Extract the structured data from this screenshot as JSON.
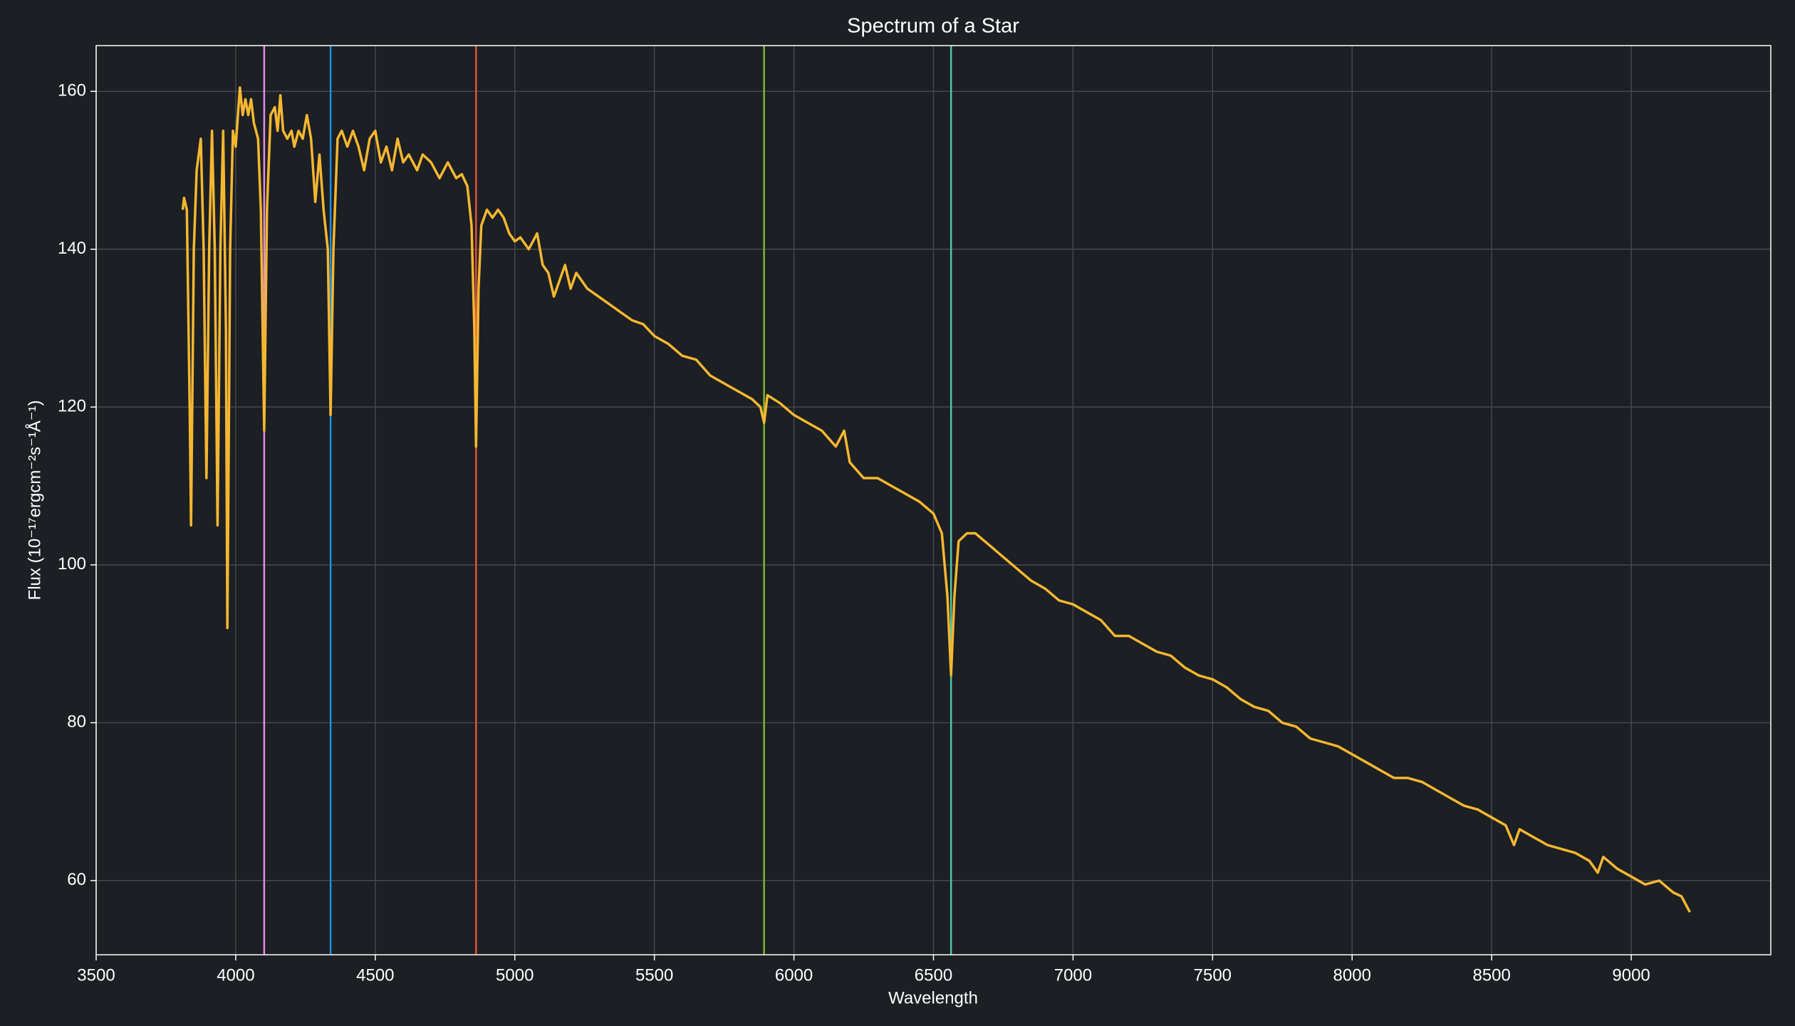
{
  "chart_data": {
    "type": "line",
    "title": "Spectrum of a Star",
    "x_label": "Wavelength",
    "y_label": "Flux (10⁻¹⁷ergcm⁻²s⁻¹Å⁻¹)",
    "background": "#1c1f23",
    "grid": true,
    "grid_color": "#45494e",
    "xlim": [
      3500,
      9500
    ],
    "ylim": [
      50.6,
      165.8
    ],
    "xticks": [
      3500,
      4000,
      4500,
      5000,
      5500,
      6000,
      6500,
      7000,
      7500,
      8000,
      8500,
      9000
    ],
    "yticks": [
      60,
      80,
      100,
      120,
      140,
      160
    ],
    "vlines": [
      {
        "x": 4102,
        "color": "#e58de8"
      },
      {
        "x": 4340,
        "color": "#1f8fe0"
      },
      {
        "x": 4861,
        "color": "#e0523a"
      },
      {
        "x": 5893,
        "color": "#7ab82a"
      },
      {
        "x": 6563,
        "color": "#4ec9a6"
      }
    ],
    "x": [
      3810,
      3815,
      3825,
      3835,
      3840,
      3850,
      3860,
      3875,
      3885,
      3895,
      3905,
      3915,
      3925,
      3935,
      3945,
      3955,
      3965,
      3970,
      3980,
      3990,
      4000,
      4010,
      4015,
      4025,
      4035,
      4045,
      4055,
      4065,
      4080,
      4090,
      4102,
      4112,
      4125,
      4140,
      4150,
      4160,
      4170,
      4185,
      4200,
      4210,
      4225,
      4240,
      4255,
      4270,
      4285,
      4300,
      4315,
      4330,
      4340,
      4350,
      4365,
      4380,
      4400,
      4420,
      4440,
      4460,
      4480,
      4500,
      4520,
      4540,
      4560,
      4580,
      4600,
      4620,
      4650,
      4670,
      4700,
      4730,
      4760,
      4790,
      4810,
      4830,
      4845,
      4855,
      4861,
      4870,
      4880,
      4900,
      4920,
      4940,
      4960,
      4980,
      5000,
      5020,
      5050,
      5080,
      5100,
      5120,
      5140,
      5160,
      5180,
      5200,
      5220,
      5240,
      5260,
      5300,
      5340,
      5380,
      5420,
      5460,
      5500,
      5550,
      5600,
      5650,
      5700,
      5750,
      5800,
      5850,
      5880,
      5893,
      5905,
      5950,
      6000,
      6050,
      6100,
      6150,
      6180,
      6200,
      6250,
      6300,
      6350,
      6400,
      6450,
      6500,
      6530,
      6550,
      6563,
      6575,
      6590,
      6620,
      6650,
      6700,
      6750,
      6800,
      6850,
      6900,
      6950,
      7000,
      7050,
      7100,
      7150,
      7200,
      7250,
      7300,
      7350,
      7400,
      7450,
      7500,
      7550,
      7600,
      7650,
      7700,
      7750,
      7800,
      7850,
      7900,
      7950,
      8000,
      8050,
      8100,
      8150,
      8200,
      8250,
      8300,
      8350,
      8400,
      8450,
      8500,
      8550,
      8580,
      8600,
      8650,
      8700,
      8750,
      8800,
      8850,
      8880,
      8900,
      8950,
      9000,
      9050,
      9100,
      9150,
      9180,
      9210
    ],
    "series": [
      {
        "color": "#f5b731",
        "values": [
          145,
          146.5,
          145,
          120,
          105,
          140,
          150,
          154,
          140,
          111,
          140,
          155,
          140,
          105,
          140,
          155,
          130,
          92,
          140,
          155,
          153,
          158,
          160.5,
          157,
          159,
          157,
          159,
          156,
          154,
          145,
          117,
          145,
          157,
          158,
          155,
          159.5,
          155,
          154,
          155,
          153,
          155,
          154,
          157,
          154,
          146,
          152,
          145,
          140,
          119,
          140,
          154,
          155,
          153,
          155,
          153,
          150,
          154,
          155,
          151,
          153,
          150,
          154,
          151,
          152,
          150,
          152,
          151,
          149,
          151,
          149,
          149.5,
          148,
          143,
          130,
          115,
          135,
          143,
          145,
          144,
          145,
          144,
          142,
          141,
          141.5,
          140,
          142,
          138,
          137,
          134,
          136,
          138,
          135,
          137,
          136,
          135,
          134,
          133,
          132,
          131,
          130.5,
          129,
          128,
          126.5,
          126,
          124,
          123,
          122,
          121,
          120,
          118,
          121.5,
          120.5,
          119,
          118,
          117,
          115,
          117,
          113,
          111,
          111,
          110,
          109,
          108,
          106.5,
          104,
          96,
          86,
          96,
          103,
          104,
          104,
          102.5,
          101,
          99.5,
          98,
          97,
          95.5,
          95,
          94,
          93,
          91,
          91,
          90,
          89,
          88.5,
          87,
          86,
          85.5,
          84.5,
          83,
          82,
          81.5,
          80,
          79.5,
          78,
          77.5,
          77,
          76,
          75,
          74,
          73,
          73,
          72.5,
          71.5,
          70.5,
          69.5,
          69,
          68,
          67,
          64.5,
          66.5,
          65.5,
          64.5,
          64,
          63.5,
          62.5,
          61,
          63,
          61.5,
          60.5,
          59.5,
          60,
          58.5,
          58,
          56
        ]
      }
    ]
  }
}
